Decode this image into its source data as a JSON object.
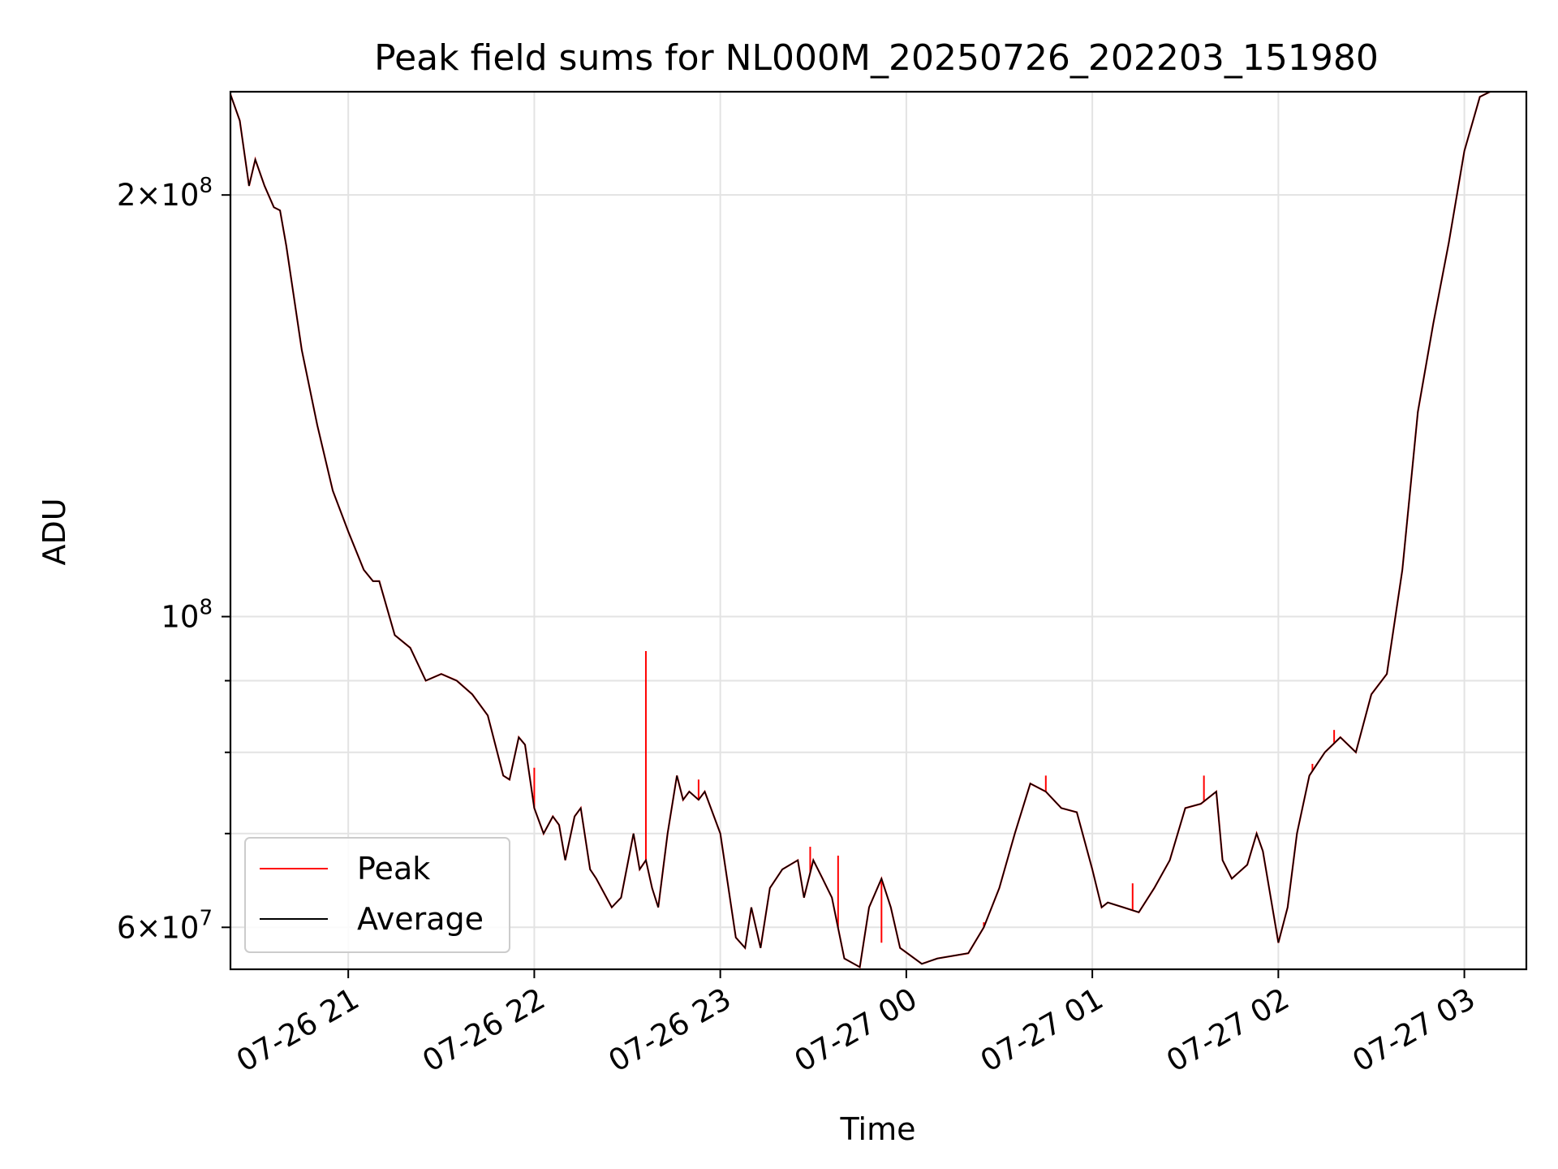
{
  "chart_data": {
    "type": "line",
    "title": "Peak field sums for NL000M_20250726_202203_151980",
    "xlabel": "Time",
    "ylabel": "ADU",
    "yscale": "log",
    "grid": true,
    "legend_position": "lower-left",
    "xlim": [
      "2025-07-26 20:22",
      "2025-07-27 03:20"
    ],
    "ylim": [
      56000000,
      237000000
    ],
    "x_ticks": [
      "07-26 21",
      "07-26 22",
      "07-26 23",
      "07-27 00",
      "07-27 01",
      "07-27 02",
      "07-27 03"
    ],
    "y_ticks": [
      {
        "value": 200000000,
        "mantissa": "2",
        "exp": "8",
        "label_type": "sci"
      },
      {
        "value": 100000000,
        "mantissa": "",
        "exp": "8",
        "label_type": "pow"
      },
      {
        "value": 60000000,
        "mantissa": "6",
        "exp": "7",
        "label_type": "sci"
      }
    ],
    "y_minor_ticks": [
      90000000,
      80000000,
      70000000
    ],
    "series": [
      {
        "name": "Peak",
        "color": "#ff0000"
      },
      {
        "name": "Average",
        "color": "#000000"
      }
    ],
    "x": [
      "2025-07-26 20:22",
      "2025-07-26 20:25",
      "2025-07-26 20:28",
      "2025-07-26 20:30",
      "2025-07-26 20:33",
      "2025-07-26 20:36",
      "2025-07-26 20:38",
      "2025-07-26 20:40",
      "2025-07-26 20:45",
      "2025-07-26 20:50",
      "2025-07-26 20:55",
      "2025-07-26 21:00",
      "2025-07-26 21:05",
      "2025-07-26 21:08",
      "2025-07-26 21:10",
      "2025-07-26 21:15",
      "2025-07-26 21:20",
      "2025-07-26 21:25",
      "2025-07-26 21:30",
      "2025-07-26 21:35",
      "2025-07-26 21:40",
      "2025-07-26 21:45",
      "2025-07-26 21:50",
      "2025-07-26 21:52",
      "2025-07-26 21:55",
      "2025-07-26 21:57",
      "2025-07-26 22:00",
      "2025-07-26 22:03",
      "2025-07-26 22:06",
      "2025-07-26 22:08",
      "2025-07-26 22:10",
      "2025-07-26 22:13",
      "2025-07-26 22:15",
      "2025-07-26 22:18",
      "2025-07-26 22:20",
      "2025-07-26 22:25",
      "2025-07-26 22:28",
      "2025-07-26 22:32",
      "2025-07-26 22:34",
      "2025-07-26 22:36",
      "2025-07-26 22:38",
      "2025-07-26 22:40",
      "2025-07-26 22:43",
      "2025-07-26 22:46",
      "2025-07-26 22:48",
      "2025-07-26 22:50",
      "2025-07-26 22:53",
      "2025-07-26 22:55",
      "2025-07-26 23:00",
      "2025-07-26 23:05",
      "2025-07-26 23:08",
      "2025-07-26 23:10",
      "2025-07-26 23:13",
      "2025-07-26 23:16",
      "2025-07-26 23:20",
      "2025-07-26 23:25",
      "2025-07-26 23:27",
      "2025-07-26 23:30",
      "2025-07-26 23:33",
      "2025-07-26 23:36",
      "2025-07-26 23:40",
      "2025-07-26 23:45",
      "2025-07-26 23:48",
      "2025-07-26 23:52",
      "2025-07-26 23:55",
      "2025-07-26 23:58",
      "2025-07-27 00:05",
      "2025-07-27 00:10",
      "2025-07-27 00:20",
      "2025-07-27 00:25",
      "2025-07-27 00:30",
      "2025-07-27 00:35",
      "2025-07-27 00:40",
      "2025-07-27 00:45",
      "2025-07-27 00:50",
      "2025-07-27 00:55",
      "2025-07-27 01:00",
      "2025-07-27 01:03",
      "2025-07-27 01:05",
      "2025-07-27 01:10",
      "2025-07-27 01:15",
      "2025-07-27 01:20",
      "2025-07-27 01:25",
      "2025-07-27 01:30",
      "2025-07-27 01:35",
      "2025-07-27 01:40",
      "2025-07-27 01:42",
      "2025-07-27 01:45",
      "2025-07-27 01:50",
      "2025-07-27 01:53",
      "2025-07-27 01:55",
      "2025-07-27 02:00",
      "2025-07-27 02:03",
      "2025-07-27 02:06",
      "2025-07-27 02:10",
      "2025-07-27 02:15",
      "2025-07-27 02:20",
      "2025-07-27 02:25",
      "2025-07-27 02:30",
      "2025-07-27 02:35",
      "2025-07-27 02:40",
      "2025-07-27 02:45",
      "2025-07-27 02:50",
      "2025-07-27 02:55",
      "2025-07-27 03:00",
      "2025-07-27 03:05",
      "2025-07-27 03:10",
      "2025-07-27 03:15",
      "2025-07-27 03:20"
    ],
    "average": [
      236000000,
      226000000,
      203000000,
      212000000,
      203000000,
      196000000,
      195000000,
      184000000,
      155000000,
      137000000,
      123000000,
      115000000,
      108000000,
      106000000,
      106000000,
      97000000,
      95000000,
      90000000,
      91000000,
      90000000,
      88000000,
      85000000,
      77000000,
      76500000,
      82000000,
      81000000,
      73000000,
      70000000,
      72000000,
      71000000,
      67000000,
      72000000,
      73000000,
      66000000,
      65000000,
      62000000,
      63000000,
      70000000,
      66000000,
      67000000,
      64000000,
      62000000,
      70000000,
      77000000,
      74000000,
      75000000,
      74000000,
      75000000,
      70000000,
      59000000,
      58000000,
      62000000,
      58000000,
      64000000,
      66000000,
      67000000,
      63000000,
      67000000,
      65000000,
      63000000,
      57000000,
      56200000,
      62000000,
      65000000,
      62000000,
      58000000,
      56500000,
      57000000,
      57500000,
      60000000,
      64000000,
      70000000,
      76000000,
      75000000,
      73000000,
      72500000,
      66000000,
      62000000,
      62500000,
      62000000,
      61500000,
      64000000,
      67000000,
      73000000,
      73500000,
      75000000,
      67000000,
      65000000,
      66500000,
      70000000,
      68000000,
      58500000,
      62000000,
      70000000,
      77000000,
      80000000,
      82000000,
      80000000,
      88000000,
      91000000,
      108000000,
      140000000,
      162000000,
      185000000,
      215000000,
      235000000,
      238000000,
      238000000,
      238000000
    ],
    "peak_spikes": [
      {
        "x": "2025-07-26 22:00",
        "y": 78000000
      },
      {
        "x": "2025-07-26 22:36",
        "y": 94500000
      },
      {
        "x": "2025-07-26 22:53",
        "y": 76500000
      },
      {
        "x": "2025-07-26 23:29",
        "y": 68500000
      },
      {
        "x": "2025-07-26 23:38",
        "y": 67500000
      },
      {
        "x": "2025-07-26 23:52",
        "y": 58500000
      },
      {
        "x": "2025-07-27 00:25",
        "y": 60500000
      },
      {
        "x": "2025-07-27 00:45",
        "y": 77000000
      },
      {
        "x": "2025-07-27 01:13",
        "y": 64500000
      },
      {
        "x": "2025-07-27 01:36",
        "y": 77000000
      },
      {
        "x": "2025-07-27 02:11",
        "y": 78500000
      },
      {
        "x": "2025-07-27 02:18",
        "y": 83000000
      }
    ]
  }
}
